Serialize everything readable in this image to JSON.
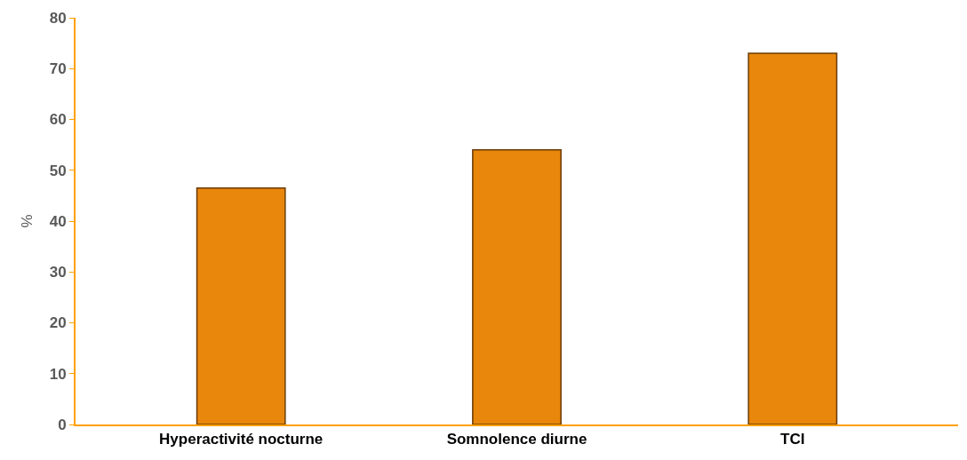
{
  "chart_data": {
    "type": "bar",
    "ylabel": "%",
    "categories": [
      "Hyperactivité nocturne",
      "Somnolence diurne",
      "TCI"
    ],
    "values": [
      46.5,
      54,
      73
    ],
    "color": "#e8870c",
    "ylim": [
      0,
      80
    ],
    "yticks": [
      0,
      10,
      20,
      30,
      40,
      50,
      60,
      70,
      80
    ]
  }
}
